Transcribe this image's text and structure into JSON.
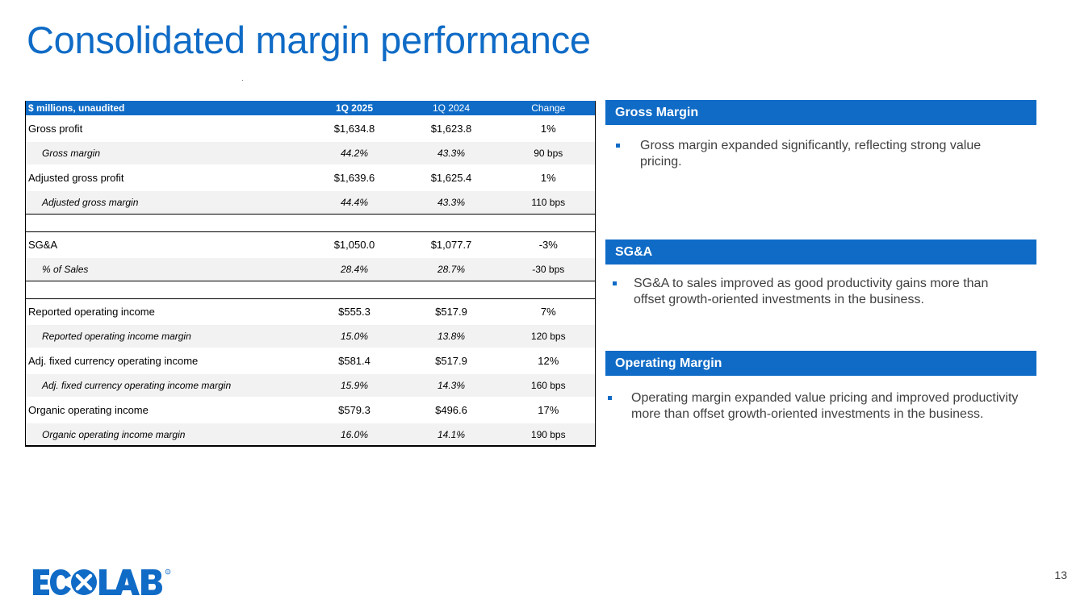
{
  "slide": {
    "title": "Consolidated margin performance",
    "page_number": "13"
  },
  "table": {
    "header": {
      "label": "$ millions, unaudited",
      "col_current": "1Q 2025",
      "col_prior": "1Q 2024",
      "col_change": "Change"
    },
    "rows": [
      {
        "label": "Gross profit",
        "current": "$1,634.8",
        "prior": "$1,623.8",
        "change": "1%"
      },
      {
        "label": "Gross margin",
        "current": "44.2%",
        "prior": "43.3%",
        "change": "90 bps"
      },
      {
        "label": "Adjusted gross profit",
        "current": "$1,639.6",
        "prior": "$1,625.4",
        "change": "1%"
      },
      {
        "label": "Adjusted gross margin",
        "current": "44.4%",
        "prior": "43.3%",
        "change": "110 bps"
      },
      {
        "label": "SG&A",
        "current": "$1,050.0",
        "prior": "$1,077.7",
        "change": "-3%"
      },
      {
        "label": "% of Sales",
        "current": "28.4%",
        "prior": "28.7%",
        "change": "-30 bps"
      },
      {
        "label": "Reported operating income",
        "current": "$555.3",
        "prior": "$517.9",
        "change": "7%"
      },
      {
        "label": "Reported operating income margin",
        "current": "15.0%",
        "prior": "13.8%",
        "change": "120 bps"
      },
      {
        "label": "Adj. fixed currency operating income",
        "current": "$581.4",
        "prior": "$517.9",
        "change": "12%"
      },
      {
        "label": "Adj. fixed currency operating income margin",
        "current": "15.9%",
        "prior": "14.3%",
        "change": "160 bps"
      },
      {
        "label": "Organic operating income",
        "current": "$579.3",
        "prior": "$496.6",
        "change": "17%"
      },
      {
        "label": "Organic operating income margin",
        "current": "16.0%",
        "prior": "14.1%",
        "change": "190 bps"
      }
    ]
  },
  "sections": [
    {
      "heading": "Gross Margin",
      "bullet": "Gross margin expanded significantly, reflecting strong value pricing."
    },
    {
      "heading": "SG&A",
      "bullet": "SG&A to sales improved as good productivity gains more than offset growth-oriented investments in the business."
    },
    {
      "heading": "Operating Margin",
      "bullet": "Operating margin expanded value pricing and improved productivity more than offset growth-oriented investments in the business."
    }
  ],
  "logo": {
    "text": "ECOLAB",
    "registered_mark": "®"
  },
  "colors": {
    "brand_blue": "#0f6bc6",
    "row_shade": "#f2f2f2",
    "body_text": "#404040"
  }
}
